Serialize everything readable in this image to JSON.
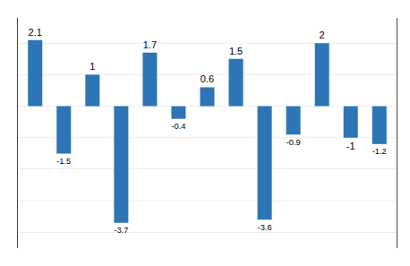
{
  "chart_data": {
    "type": "bar",
    "categories": [
      null,
      null,
      null,
      null,
      null,
      null,
      null,
      null,
      null,
      null,
      null,
      null,
      null
    ],
    "values": [
      2.1,
      -1.5,
      1.0,
      -3.7,
      1.7,
      -0.4,
      0.6,
      1.5,
      -3.6,
      -0.9,
      2.0,
      -1.0,
      -1.2
    ],
    "color": "#2E75B6",
    "ylim": [
      -4.5,
      2.8
    ],
    "yticks": [
      -4,
      -3,
      -2,
      -1,
      0,
      1,
      2
    ],
    "grid": true,
    "data_labels": true,
    "tick_labels": false
  }
}
